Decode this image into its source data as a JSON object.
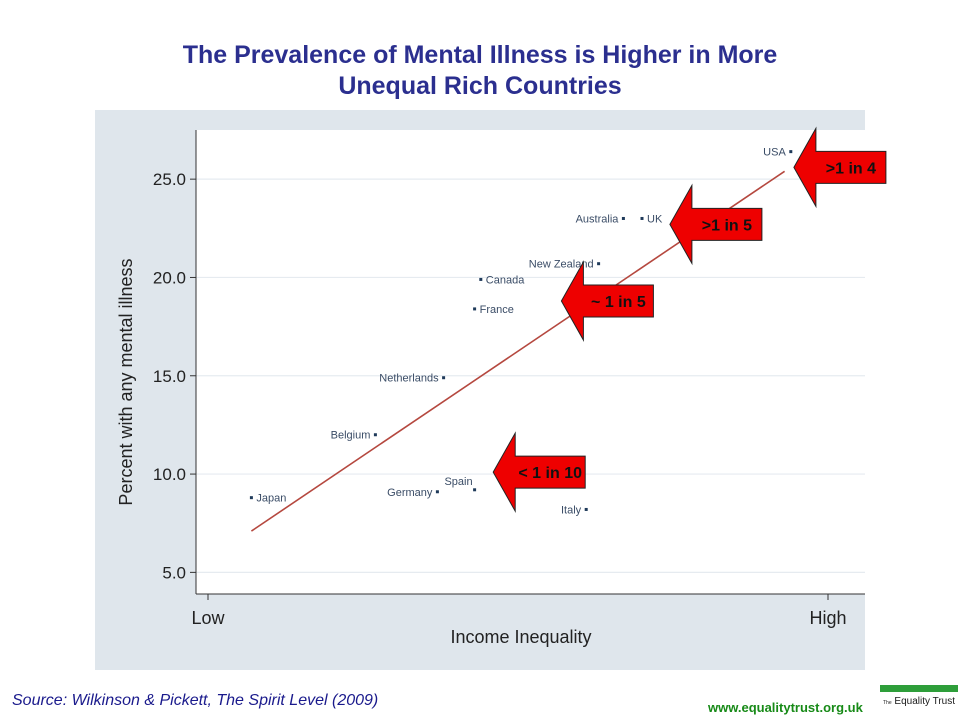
{
  "title": {
    "line1": "The Prevalence of Mental Illness is Higher in More",
    "line2": "Unequal Rich Countries"
  },
  "chart_data": {
    "type": "scatter",
    "ylabel": "Percent with any mental illness",
    "xlabel": "Income Inequality",
    "xlim": [
      0,
      1
    ],
    "ylim": [
      3.9,
      27.5
    ],
    "x_ticks": [
      {
        "label": "Low",
        "value": 0
      },
      {
        "label": "High",
        "value": 1
      }
    ],
    "y_ticks": [
      5.0,
      10.0,
      15.0,
      20.0,
      25.0
    ],
    "y_tick_labels": [
      "5.0",
      "10.0",
      "15.0",
      "20.0",
      "25.0"
    ],
    "grid": true,
    "points": [
      {
        "name": "Japan",
        "x": 0.07,
        "y": 8.8,
        "label_side": "right"
      },
      {
        "name": "Belgium",
        "x": 0.27,
        "y": 12.0,
        "label_side": "left"
      },
      {
        "name": "Netherlands",
        "x": 0.38,
        "y": 14.9,
        "label_side": "left"
      },
      {
        "name": "Germany",
        "x": 0.37,
        "y": 9.1,
        "label_side": "left"
      },
      {
        "name": "Spain",
        "x": 0.43,
        "y": 9.2,
        "label_side": "above-left"
      },
      {
        "name": "France",
        "x": 0.43,
        "y": 18.4,
        "label_side": "right"
      },
      {
        "name": "Canada",
        "x": 0.44,
        "y": 19.9,
        "label_side": "right"
      },
      {
        "name": "Italy",
        "x": 0.61,
        "y": 8.2,
        "label_side": "left"
      },
      {
        "name": "New Zealand",
        "x": 0.63,
        "y": 20.7,
        "label_side": "left"
      },
      {
        "name": "Australia",
        "x": 0.67,
        "y": 23.0,
        "label_side": "left"
      },
      {
        "name": "UK",
        "x": 0.7,
        "y": 23.0,
        "label_side": "right"
      },
      {
        "name": "USA",
        "x": 0.94,
        "y": 26.4,
        "label_side": "left"
      }
    ],
    "fit_line": {
      "x1": 0.07,
      "y1": 7.1,
      "x2": 0.93,
      "y2": 25.4,
      "color": "#b5483f"
    },
    "callouts": [
      {
        "text": ">1 in 4",
        "x": 0.945,
        "y": 25.6
      },
      {
        "text": ">1 in 5",
        "x": 0.745,
        "y": 22.7
      },
      {
        "text": "~ 1 in 5",
        "x": 0.57,
        "y": 18.8
      },
      {
        "text": "< 1 in 10",
        "x": 0.46,
        "y": 10.1
      }
    ],
    "callout_color": "#ee0000",
    "point_color": "#1f3a5a",
    "label_color": "#3a4c66"
  },
  "footer": {
    "source": "Source: Wilkinson & Pickett, The Spirit Level (2009)",
    "website": "www.equalitytrust.org.uk",
    "logo_prefix": "The",
    "logo_text": "Equality Trust"
  }
}
